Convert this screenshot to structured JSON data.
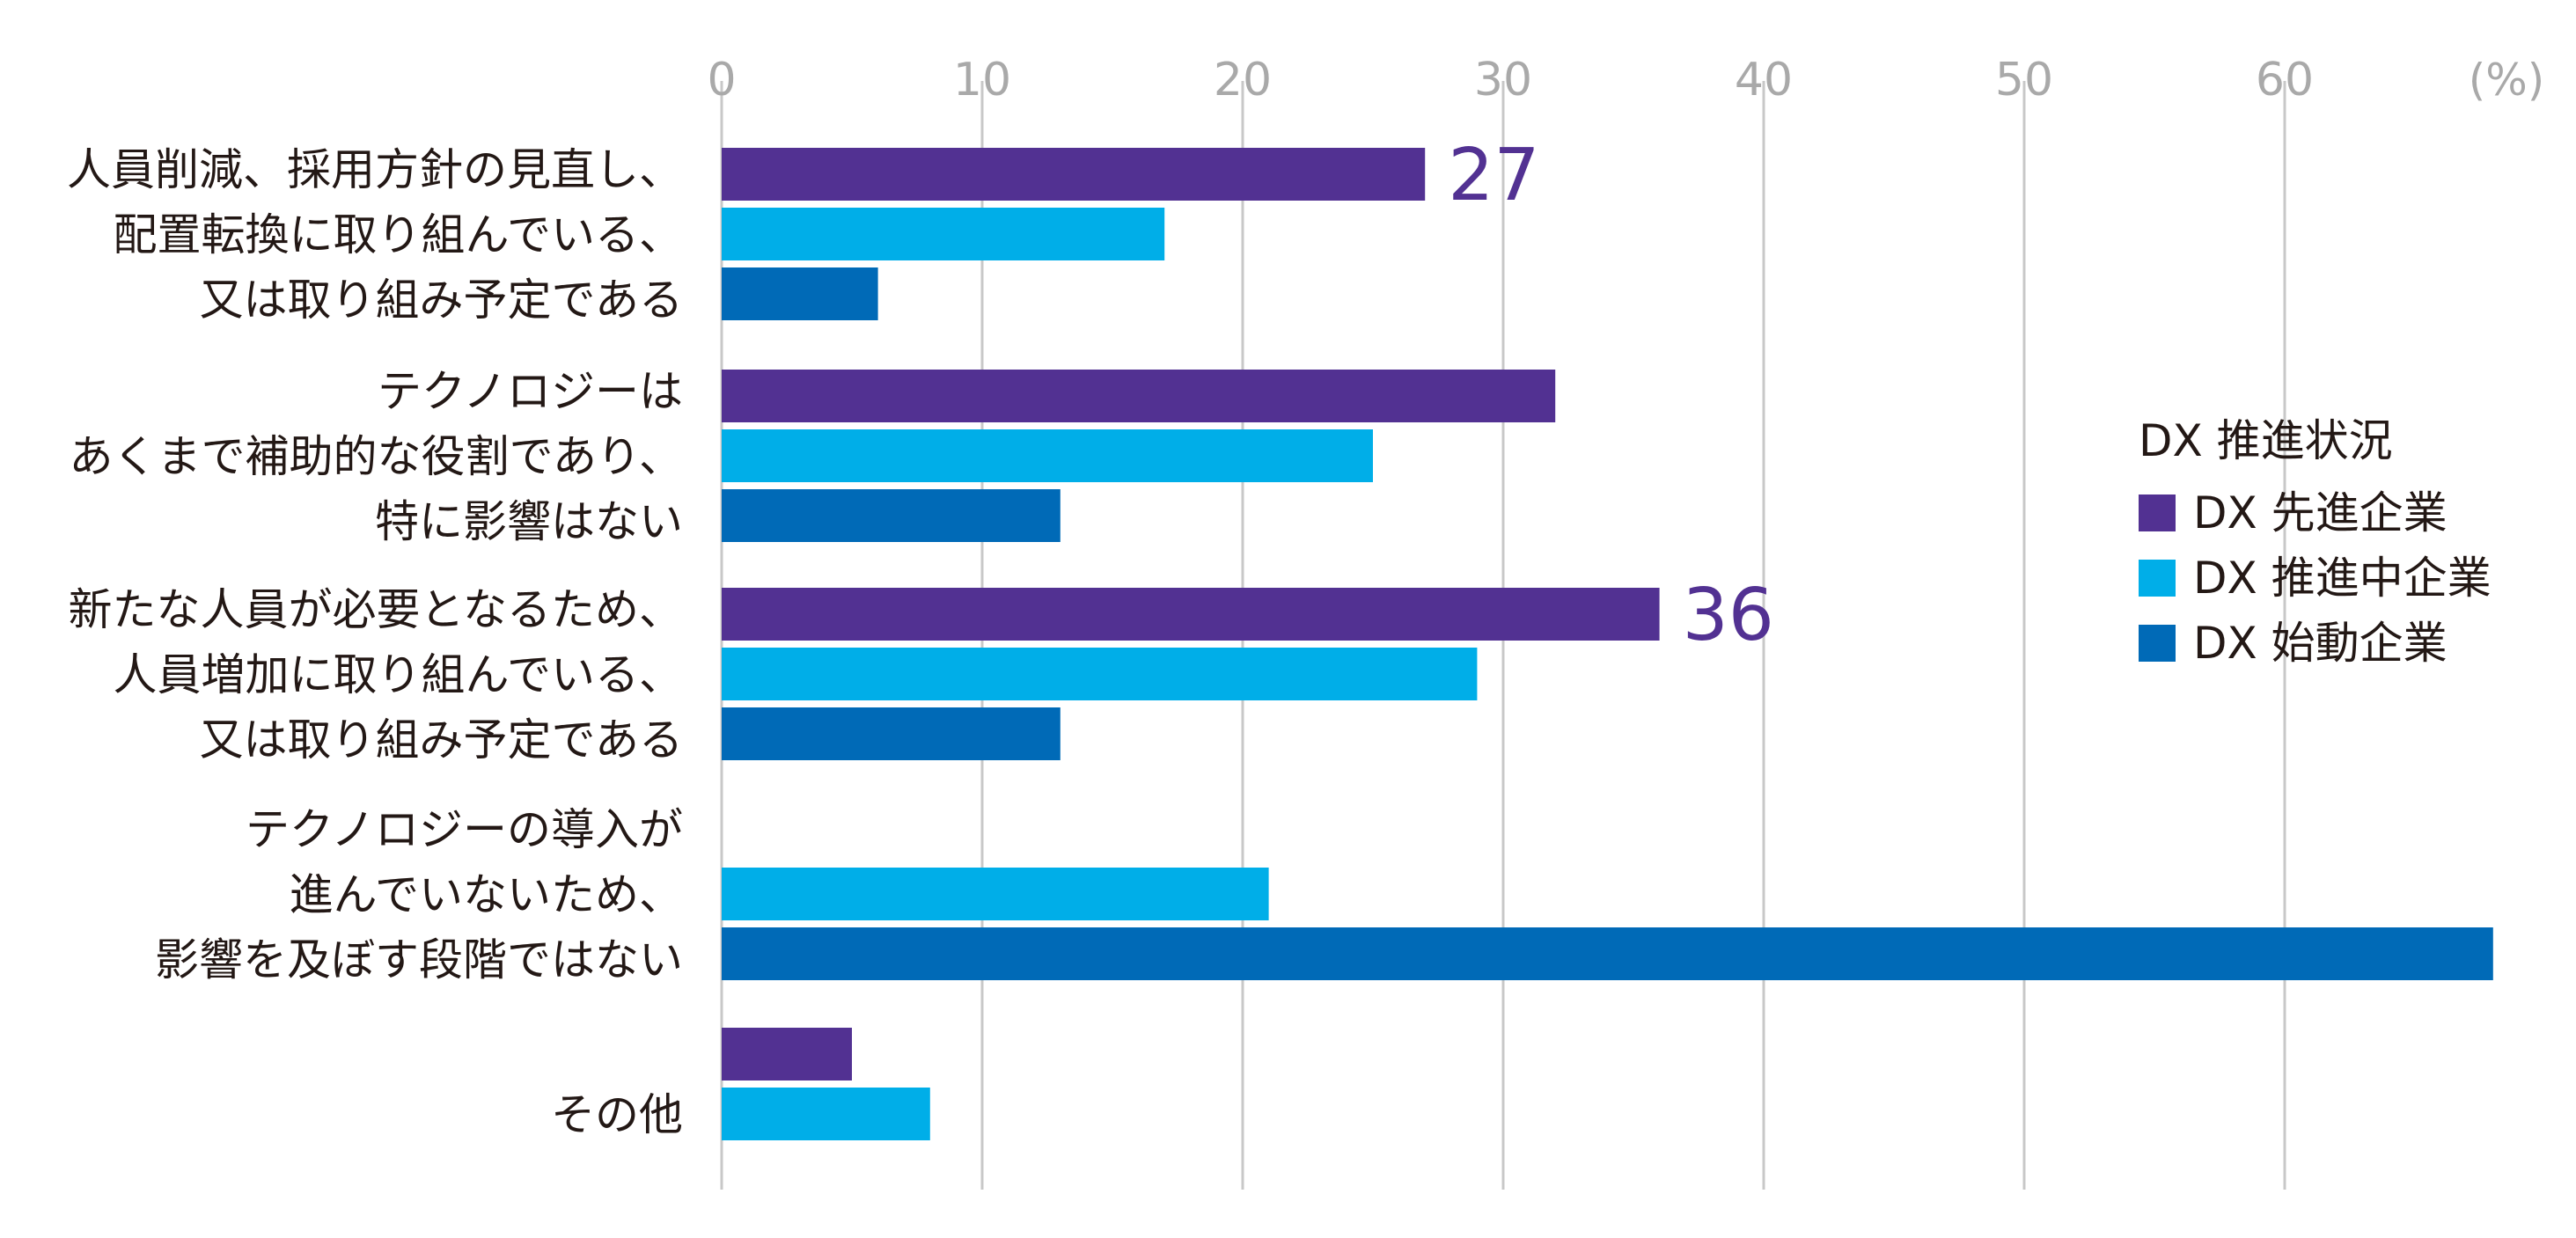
{
  "chart_data": {
    "type": "bar",
    "orientation": "horizontal",
    "unit_label": "(%)",
    "xlim": [
      0,
      70
    ],
    "ticks": [
      0,
      10,
      20,
      30,
      40,
      50,
      60
    ],
    "grid": true,
    "legend_position": "right",
    "legend_title": "DX 推進状況",
    "categories": [
      {
        "lines": [
          "人員削減、採用方針の見直し、",
          "配置転換に取り組んでいる、",
          "又は取り組み予定である"
        ]
      },
      {
        "lines": [
          "テクノロジーは",
          "あくまで補助的な役割であり、",
          "特に影響はない"
        ]
      },
      {
        "lines": [
          "新たな人員が必要となるため、",
          "人員増加に取り組んでいる、",
          "又は取り組み予定である"
        ]
      },
      {
        "lines": [
          "テクノロジーの導入が",
          "進んでいないため、",
          "影響を及ぼす段階ではない"
        ]
      },
      {
        "lines": [
          "その他"
        ]
      }
    ],
    "series": [
      {
        "name": "DX 先進企業",
        "color": "#523192",
        "values": [
          27,
          32,
          36,
          null,
          5
        ],
        "data_labels": [
          "27",
          null,
          "36",
          null,
          null
        ]
      },
      {
        "name": "DX 推進中企業",
        "color": "#00aee8",
        "values": [
          17,
          25,
          29,
          21,
          8
        ],
        "data_labels": [
          null,
          null,
          null,
          null,
          null
        ]
      },
      {
        "name": "DX 始動企業",
        "color": "#006ab7",
        "values": [
          6,
          13,
          13,
          68,
          null
        ],
        "data_labels": [
          null,
          null,
          null,
          null,
          null
        ]
      }
    ]
  }
}
